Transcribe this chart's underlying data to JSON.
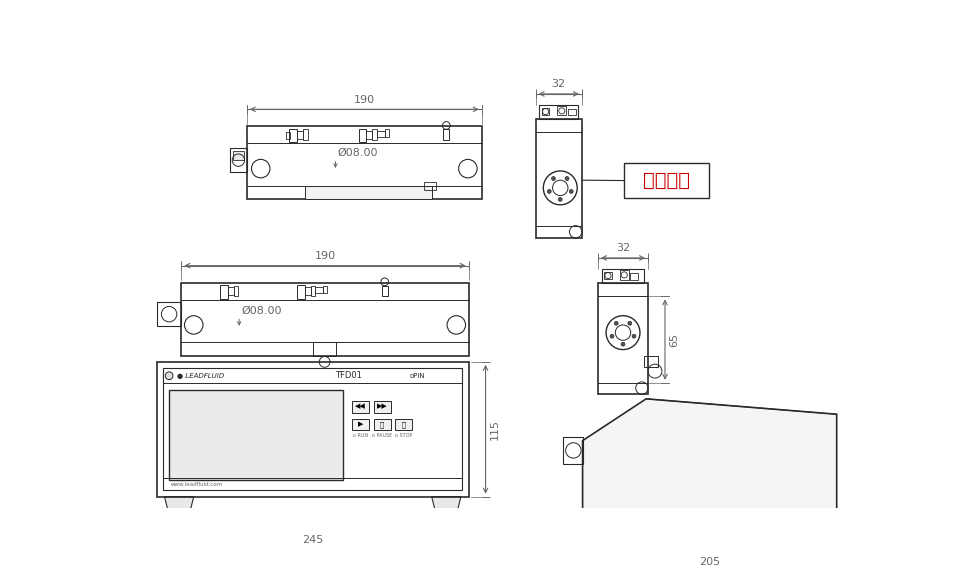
{
  "bg_color": "#ffffff",
  "line_color": "#2a2a2a",
  "dim_color": "#666666",
  "red_color": "#cc0000",
  "dims": {
    "top_190": "190",
    "top_32": "32",
    "bot_190": "190",
    "bot_phi": "Ø08.00",
    "bot_245": "245",
    "bot_115": "115",
    "br_32": "32",
    "br_65": "65",
    "br_205": "205"
  },
  "label_text": "执行单元"
}
